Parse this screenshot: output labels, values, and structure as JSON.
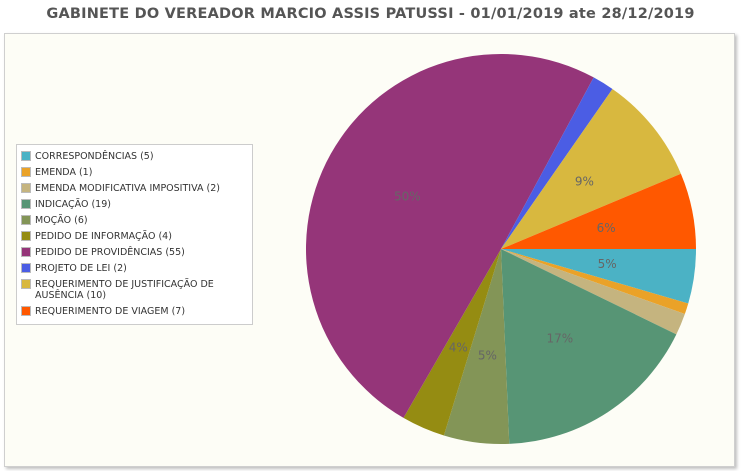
{
  "chart_data": {
    "type": "pie",
    "title": "GABINETE DO VEREADOR MARCIO ASSIS PATUSSI - 01/01/2019 ate 28/12/2019",
    "legend_position": "left",
    "slices": [
      {
        "label": "CORRESPONDÊNCIAS (5)",
        "value": 5,
        "pct_label": "5%",
        "color": "#4bb2c5"
      },
      {
        "label": "EMENDA (1)",
        "value": 1,
        "pct_label": "",
        "color": "#eaa228"
      },
      {
        "label": "EMENDA MODIFICATIVA IMPOSITIVA (2)",
        "value": 2,
        "pct_label": "",
        "color": "#c5b47f"
      },
      {
        "label": "INDICAÇÃO (19)",
        "value": 19,
        "pct_label": "17%",
        "color": "#579575"
      },
      {
        "label": "MOÇÃO (6)",
        "value": 6,
        "pct_label": "5%",
        "color": "#839557"
      },
      {
        "label": "PEDIDO DE INFORMAÇÃO (4)",
        "value": 4,
        "pct_label": "4%",
        "color": "#958c12"
      },
      {
        "label": "PEDIDO DE PROVIDÊNCIAS (55)",
        "value": 55,
        "pct_label": "50%",
        "color": "#953579"
      },
      {
        "label": "PROJETO DE LEI (2)",
        "value": 2,
        "pct_label": "",
        "color": "#4b5de4"
      },
      {
        "label": "REQUERIMENTO DE JUSTIFICAÇÃO DE AUSÊNCIA (10)",
        "value": 10,
        "pct_label": "9%",
        "color": "#d8b83f"
      },
      {
        "label": "REQUERIMENTO DE VIAGEM (7)",
        "value": 7,
        "pct_label": "6%",
        "color": "#ff5800"
      }
    ]
  }
}
